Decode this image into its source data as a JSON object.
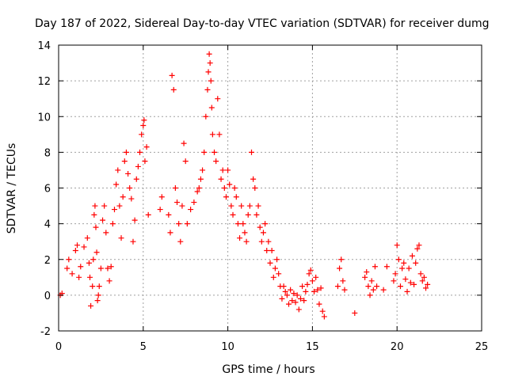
{
  "chart_data": {
    "type": "scatter",
    "title": "Day 187 of 2022, Sidereal Day-to-day VTEC variation (SDTVAR) for receiver dumg",
    "xlabel": "GPS time / hours",
    "ylabel": "SDTVAR / TECUs",
    "xlim": [
      0,
      25
    ],
    "ylim": [
      -2,
      14
    ],
    "xticks": [
      0,
      5,
      10,
      15,
      20,
      25
    ],
    "xtick_labels": [
      "0",
      "5",
      "10",
      "15",
      "20",
      "25"
    ],
    "yticks": [
      -2,
      0,
      2,
      4,
      6,
      8,
      10,
      12,
      14
    ],
    "ytick_labels": [
      "-2",
      "0",
      "2",
      "4",
      "6",
      "8",
      "10",
      "12",
      "14"
    ],
    "grid": true,
    "marker": "+",
    "marker_color": "#ff0000",
    "series": [
      {
        "name": "SDTVAR",
        "x": [
          0.1,
          0.2,
          0.5,
          0.6,
          0.8,
          1.0,
          1.1,
          1.2,
          1.3,
          1.5,
          1.7,
          1.8,
          1.85,
          1.9,
          2.0,
          2.05,
          2.1,
          2.15,
          2.2,
          2.25,
          2.3,
          2.35,
          2.4,
          2.5,
          2.6,
          2.7,
          2.8,
          2.9,
          3.0,
          3.1,
          3.2,
          3.3,
          3.4,
          3.5,
          3.6,
          3.7,
          3.8,
          3.9,
          4.0,
          4.1,
          4.2,
          4.3,
          4.4,
          4.5,
          4.6,
          4.7,
          4.8,
          4.9,
          5.0,
          5.05,
          5.1,
          5.2,
          5.3,
          6.0,
          6.1,
          6.5,
          6.6,
          6.7,
          6.8,
          6.9,
          7.0,
          7.1,
          7.2,
          7.3,
          7.4,
          7.5,
          7.6,
          7.8,
          8.0,
          8.2,
          8.3,
          8.4,
          8.5,
          8.6,
          8.7,
          8.8,
          8.85,
          8.9,
          8.95,
          9.0,
          9.05,
          9.1,
          9.2,
          9.3,
          9.4,
          9.5,
          9.6,
          9.7,
          9.8,
          9.9,
          10.0,
          10.1,
          10.2,
          10.3,
          10.4,
          10.5,
          10.6,
          10.7,
          10.8,
          10.9,
          11.0,
          11.1,
          11.2,
          11.3,
          11.4,
          11.5,
          11.6,
          11.7,
          11.8,
          11.9,
          12.0,
          12.1,
          12.2,
          12.3,
          12.4,
          12.5,
          12.6,
          12.7,
          12.8,
          12.9,
          13.0,
          13.1,
          13.2,
          13.3,
          13.4,
          13.5,
          13.6,
          13.7,
          13.8,
          13.9,
          14.0,
          14.1,
          14.2,
          14.3,
          14.4,
          14.5,
          14.6,
          14.7,
          14.8,
          14.9,
          15.0,
          15.1,
          15.2,
          15.3,
          15.4,
          15.5,
          15.6,
          15.7,
          16.5,
          16.6,
          16.7,
          16.8,
          16.9,
          17.5,
          18.1,
          18.2,
          18.3,
          18.4,
          18.5,
          18.6,
          18.7,
          18.8,
          19.2,
          19.4,
          19.8,
          19.9,
          20.0,
          20.1,
          20.2,
          20.3,
          20.4,
          20.5,
          20.6,
          20.7,
          20.8,
          20.9,
          21.0,
          21.1,
          21.2,
          21.3,
          21.4,
          21.5,
          21.6,
          21.7,
          21.8
        ],
        "y": [
          0.0,
          0.1,
          1.5,
          2.0,
          1.2,
          2.5,
          2.8,
          1.0,
          1.6,
          2.7,
          3.2,
          1.8,
          1.0,
          -0.6,
          0.5,
          2.0,
          4.5,
          5.0,
          3.8,
          2.4,
          -0.3,
          0.0,
          0.5,
          1.5,
          4.2,
          5.0,
          3.5,
          1.5,
          0.8,
          1.6,
          4.0,
          4.8,
          6.2,
          7.0,
          5.0,
          3.2,
          5.5,
          7.5,
          8.0,
          6.8,
          6.0,
          5.4,
          3.0,
          4.2,
          6.5,
          7.2,
          8.0,
          9.0,
          9.5,
          9.8,
          7.5,
          8.3,
          4.5,
          4.8,
          5.5,
          4.5,
          3.5,
          12.3,
          11.5,
          6.0,
          5.2,
          4.0,
          3.0,
          5.0,
          8.5,
          7.5,
          4.0,
          4.8,
          5.2,
          5.8,
          6.0,
          6.5,
          7.0,
          8.0,
          10.0,
          11.5,
          12.5,
          13.5,
          13.0,
          12.0,
          10.5,
          9.0,
          8.0,
          7.5,
          11.0,
          9.0,
          6.5,
          7.0,
          6.0,
          5.5,
          7.0,
          6.2,
          5.0,
          4.5,
          6.0,
          5.5,
          4.0,
          3.2,
          5.0,
          4.0,
          3.5,
          3.0,
          4.5,
          5.0,
          8.0,
          6.5,
          6.0,
          4.5,
          5.0,
          3.8,
          3.0,
          3.5,
          4.0,
          2.5,
          3.0,
          1.8,
          2.5,
          1.0,
          1.5,
          2.0,
          1.2,
          0.5,
          -0.2,
          0.5,
          0.2,
          0.0,
          -0.5,
          0.3,
          -0.3,
          0.1,
          -0.4,
          0.0,
          -0.8,
          -0.2,
          0.5,
          -0.3,
          0.2,
          0.6,
          1.2,
          1.4,
          0.8,
          0.2,
          1.0,
          0.3,
          -0.5,
          0.4,
          -0.9,
          -1.2,
          0.5,
          1.5,
          2.0,
          0.8,
          0.3,
          -1.0,
          1.0,
          1.3,
          0.5,
          0.0,
          0.8,
          0.3,
          1.6,
          0.5,
          0.3,
          1.6,
          0.8,
          1.2,
          2.8,
          2.0,
          0.5,
          1.5,
          1.8,
          0.9,
          0.2,
          1.5,
          0.7,
          2.2,
          0.6,
          1.8,
          2.6,
          2.8,
          1.2,
          0.8,
          1.0,
          0.4,
          0.6
        ]
      }
    ]
  }
}
